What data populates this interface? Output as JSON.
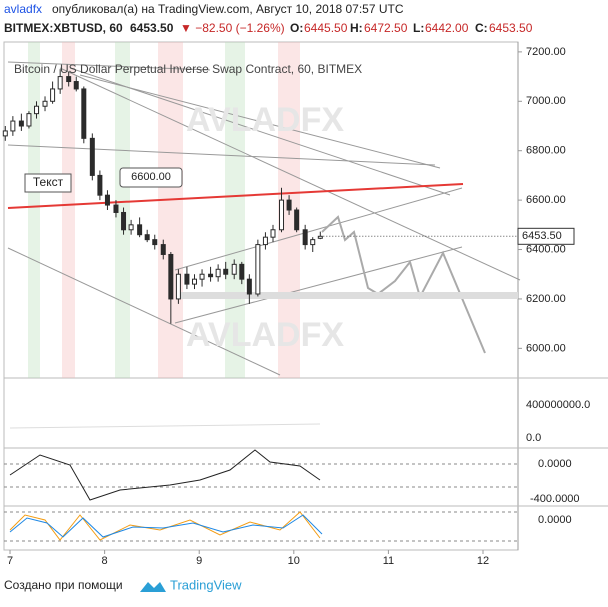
{
  "header": {
    "author": "avladfx",
    "published": "опубликовал(а) на TradingView.com, Август 10, 2018 07:57 UTC",
    "symbol": "BITMEX:XBTUSD, 60",
    "last": "6453.50",
    "change": "▼ −82.50 (−1.26%)",
    "o_label": "O:",
    "o": "6445.50",
    "h_label": "H:",
    "h": "6472.50",
    "l_label": "L:",
    "l": "6442.00",
    "c_label": "C:",
    "c": "6453.50"
  },
  "footer": {
    "made_with": "Создано при помощи",
    "brand": "TradingView"
  },
  "indicator_labels": [
    "400000000.0",
    "0.0",
    "0.0000",
    "-400.0000",
    "0.0000"
  ],
  "chart_data": {
    "type": "candlestick",
    "title": "Bitcoin / US Dollar Perpetual Inverse Swap Contract, 60, BITMEX",
    "annotations": [
      "AVLADFX",
      "AVLADFX",
      "Текст",
      "6600.00"
    ],
    "price_tag": "6453.50",
    "x": [
      6.95,
      7.03,
      7.12,
      7.2,
      7.28,
      7.37,
      7.45,
      7.53,
      7.62,
      7.7,
      7.78,
      7.87,
      7.95,
      8.03,
      8.12,
      8.2,
      8.28,
      8.37,
      8.45,
      8.53,
      8.62,
      8.7,
      8.78,
      8.87,
      8.95,
      9.03,
      9.12,
      9.2,
      9.28,
      9.37,
      9.45,
      9.53,
      9.62,
      9.7,
      9.78,
      9.87,
      9.95,
      10.03,
      10.12,
      10.2,
      10.28
    ],
    "series": [
      {
        "name": "XBTUSD",
        "color": "#2b2b2b",
        "open": [
          6860,
          6880,
          6920,
          6900,
          6950,
          6980,
          7000,
          7050,
          7100,
          7080,
          7050,
          6850,
          6700,
          6620,
          6580,
          6550,
          6480,
          6500,
          6460,
          6440,
          6420,
          6380,
          6200,
          6300,
          6260,
          6280,
          6300,
          6290,
          6320,
          6300,
          6340,
          6280,
          6220,
          6420,
          6450,
          6480,
          6600,
          6560,
          6480,
          6420,
          6445.5
        ],
        "high": [
          6900,
          6940,
          6950,
          6960,
          7000,
          7020,
          7080,
          7130,
          7120,
          7100,
          7060,
          6870,
          6720,
          6640,
          6600,
          6570,
          6520,
          6530,
          6480,
          6460,
          6440,
          6390,
          6320,
          6330,
          6300,
          6320,
          6330,
          6340,
          6350,
          6360,
          6350,
          6300,
          6440,
          6470,
          6500,
          6650,
          6620,
          6570,
          6500,
          6450,
          6472.5
        ],
        "low": [
          6840,
          6860,
          6880,
          6890,
          6930,
          6960,
          6990,
          7030,
          7060,
          7040,
          6830,
          6680,
          6600,
          6560,
          6530,
          6460,
          6460,
          6450,
          6430,
          6400,
          6360,
          6100,
          6180,
          6240,
          6240,
          6250,
          6270,
          6270,
          6280,
          6280,
          6260,
          6180,
          6210,
          6400,
          6430,
          6470,
          6540,
          6470,
          6400,
          6390,
          6442
        ],
        "close": [
          6880,
          6920,
          6900,
          6950,
          6980,
          7000,
          7050,
          7100,
          7080,
          7050,
          6850,
          6700,
          6620,
          6580,
          6550,
          6480,
          6500,
          6460,
          6440,
          6420,
          6380,
          6200,
          6300,
          6260,
          6280,
          6300,
          6290,
          6320,
          6300,
          6340,
          6280,
          6220,
          6420,
          6450,
          6480,
          6600,
          6560,
          6480,
          6420,
          6440,
          6453.5
        ]
      }
    ],
    "xlim": [
      6.894,
      12.37
    ],
    "xticks": [
      7,
      8,
      9,
      10,
      11,
      12
    ],
    "ylim": [
      5880,
      7240
    ],
    "yticks": [
      {
        "value": 6000,
        "label": "6000.00"
      },
      {
        "value": 6200,
        "label": "6200.00"
      },
      {
        "value": 6400,
        "label": "6400.00"
      },
      {
        "value": 6600,
        "label": "6600.00"
      },
      {
        "value": 6800,
        "label": "6800.00"
      },
      {
        "value": 7000,
        "label": "7000.00"
      },
      {
        "value": 7200,
        "label": "7200.00"
      }
    ]
  }
}
